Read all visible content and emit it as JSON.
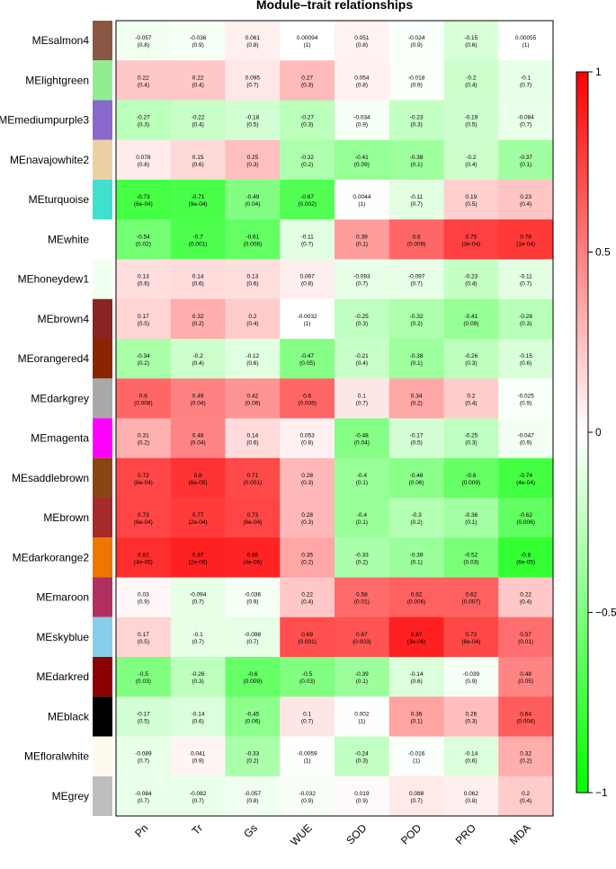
{
  "chart_data": {
    "type": "heatmap",
    "title": "Module–trait relationships",
    "columns": [
      "Pn",
      "Tr",
      "Gs",
      "WUE",
      "SOD",
      "POD",
      "PRO",
      "MDA"
    ],
    "rows": [
      {
        "name": "MEsalmon4",
        "color": "#8B5742",
        "values": [
          [
            "-0.057",
            "(0.8)"
          ],
          [
            "-0.036",
            "(0.9)"
          ],
          [
            "0.061",
            "(0.8)"
          ],
          [
            "0.00094",
            "(1)"
          ],
          [
            "0.051",
            "(0.8)"
          ],
          [
            "-0.024",
            "(0.9)"
          ],
          [
            "-0.15",
            "(0.6)"
          ],
          [
            "0.00055",
            "(1)"
          ]
        ]
      },
      {
        "name": "MElightgreen",
        "color": "#90EE90",
        "values": [
          [
            "0.22",
            "(0.4)"
          ],
          [
            "0.22",
            "(0.4)"
          ],
          [
            "0.095",
            "(0.7)"
          ],
          [
            "0.27",
            "(0.3)"
          ],
          [
            "0.054",
            "(0.8)"
          ],
          [
            "-0.018",
            "(0.9)"
          ],
          [
            "-0.2",
            "(0.4)"
          ],
          [
            "-0.1",
            "(0.7)"
          ]
        ]
      },
      {
        "name": "MEmediumpurple3",
        "color": "#8968CD",
        "values": [
          [
            "-0.27",
            "(0.3)"
          ],
          [
            "-0.22",
            "(0.4)"
          ],
          [
            "-0.18",
            "(0.5)"
          ],
          [
            "-0.27",
            "(0.3)"
          ],
          [
            "-0.034",
            "(0.9)"
          ],
          [
            "-0.23",
            "(0.3)"
          ],
          [
            "-0.19",
            "(0.5)"
          ],
          [
            "-0.084",
            "(0.7)"
          ]
        ]
      },
      {
        "name": "MEnavajowhite2",
        "color": "#EECFA1",
        "values": [
          [
            "0.078",
            "(0.8)"
          ],
          [
            "0.15",
            "(0.6)"
          ],
          [
            "0.25",
            "(0.3)"
          ],
          [
            "-0.32",
            "(0.2)"
          ],
          [
            "-0.41",
            "(0.09)"
          ],
          [
            "-0.38",
            "(0.1)"
          ],
          [
            "-0.2",
            "(0.4)"
          ],
          [
            "-0.37",
            "(0.1)"
          ]
        ]
      },
      {
        "name": "MEturquoise",
        "color": "#40E0D0",
        "values": [
          [
            "-0.73",
            "(6e-04)"
          ],
          [
            "-0.71",
            "(9e-04)"
          ],
          [
            "-0.49",
            "(0.04)"
          ],
          [
            "-0.67",
            "(0.002)"
          ],
          [
            "0.0044",
            "(1)"
          ],
          [
            "-0.11",
            "(0.7)"
          ],
          [
            "0.19",
            "(0.5)"
          ],
          [
            "0.23",
            "(0.4)"
          ]
        ]
      },
      {
        "name": "MEwhite",
        "color": "#FFFFFF",
        "values": [
          [
            "-0.54",
            "(0.02)"
          ],
          [
            "-0.7",
            "(0.001)"
          ],
          [
            "-0.61",
            "(0.008)"
          ],
          [
            "-0.11",
            "(0.7)"
          ],
          [
            "0.39",
            "(0.1)"
          ],
          [
            "0.6",
            "(0.009)"
          ],
          [
            "0.75",
            "(3e-04)"
          ],
          [
            "0.78",
            "(1e-04)"
          ]
        ]
      },
      {
        "name": "MEhoneydew1",
        "color": "#F0FFF0",
        "values": [
          [
            "0.13",
            "(0.6)"
          ],
          [
            "0.14",
            "(0.6)"
          ],
          [
            "0.13",
            "(0.6)"
          ],
          [
            "0.067",
            "(0.8)"
          ],
          [
            "-0.093",
            "(0.7)"
          ],
          [
            "-0.097",
            "(0.7)"
          ],
          [
            "-0.23",
            "(0.4)"
          ],
          [
            "-0.11",
            "(0.7)"
          ]
        ]
      },
      {
        "name": "MEbrown4",
        "color": "#8B2323",
        "values": [
          [
            "0.17",
            "(0.5)"
          ],
          [
            "0.32",
            "(0.2)"
          ],
          [
            "0.2",
            "(0.4)"
          ],
          [
            "-0.0032",
            "(1)"
          ],
          [
            "-0.25",
            "(0.3)"
          ],
          [
            "-0.32",
            "(0.2)"
          ],
          [
            "-0.41",
            "(0.09)"
          ],
          [
            "-0.28",
            "(0.3)"
          ]
        ]
      },
      {
        "name": "MEorangered4",
        "color": "#8B2500",
        "values": [
          [
            "-0.34",
            "(0.2)"
          ],
          [
            "-0.2",
            "(0.4)"
          ],
          [
            "-0.12",
            "(0.6)"
          ],
          [
            "-0.47",
            "(0.05)"
          ],
          [
            "-0.21",
            "(0.4)"
          ],
          [
            "-0.38",
            "(0.1)"
          ],
          [
            "-0.26",
            "(0.3)"
          ],
          [
            "-0.15",
            "(0.6)"
          ]
        ]
      },
      {
        "name": "MEdarkgrey",
        "color": "#A9A9A9",
        "values": [
          [
            "0.6",
            "(0.008)"
          ],
          [
            "0.49",
            "(0.04)"
          ],
          [
            "0.42",
            "(0.08)"
          ],
          [
            "0.6",
            "(0.008)"
          ],
          [
            "0.1",
            "(0.7)"
          ],
          [
            "0.34",
            "(0.2)"
          ],
          [
            "0.2",
            "(0.4)"
          ],
          [
            "-0.025",
            "(0.9)"
          ]
        ]
      },
      {
        "name": "MEmagenta",
        "color": "#FF00FF",
        "values": [
          [
            "0.31",
            "(0.2)"
          ],
          [
            "0.48",
            "(0.04)"
          ],
          [
            "0.14",
            "(0.6)"
          ],
          [
            "0.053",
            "(0.8)"
          ],
          [
            "-0.48",
            "(0.04)"
          ],
          [
            "-0.17",
            "(0.5)"
          ],
          [
            "-0.25",
            "(0.3)"
          ],
          [
            "-0.047",
            "(0.9)"
          ]
        ]
      },
      {
        "name": "MEsaddlebrown",
        "color": "#8B4513",
        "values": [
          [
            "0.72",
            "(8e-04)"
          ],
          [
            "0.8",
            "(6e-05)"
          ],
          [
            "0.71",
            "(0.001)"
          ],
          [
            "0.28",
            "(0.3)"
          ],
          [
            "-0.4",
            "(0.1)"
          ],
          [
            "-0.46",
            "(0.06)"
          ],
          [
            "-0.6",
            "(0.009)"
          ],
          [
            "-0.74",
            "(4e-04)"
          ]
        ]
      },
      {
        "name": "MEbrown",
        "color": "#A52A2A",
        "values": [
          [
            "0.73",
            "(6e-04)"
          ],
          [
            "0.77",
            "(2e-04)"
          ],
          [
            "0.73",
            "(6e-04)"
          ],
          [
            "0.28",
            "(0.3)"
          ],
          [
            "-0.4",
            "(0.1)"
          ],
          [
            "-0.3",
            "(0.2)"
          ],
          [
            "-0.36",
            "(0.1)"
          ],
          [
            "-0.62",
            "(0.006)"
          ]
        ]
      },
      {
        "name": "MEdarkorange2",
        "color": "#EE7600",
        "values": [
          [
            "0.82",
            "(4e-05)"
          ],
          [
            "0.87",
            "(2e-06)"
          ],
          [
            "0.86",
            "(4e-06)"
          ],
          [
            "0.35",
            "(0.2)"
          ],
          [
            "-0.33",
            "(0.2)"
          ],
          [
            "-0.39",
            "(0.1)"
          ],
          [
            "-0.52",
            "(0.03)"
          ],
          [
            "-0.8",
            "(6e-05)"
          ]
        ]
      },
      {
        "name": "MEmaroon",
        "color": "#B03060",
        "values": [
          [
            "0.03",
            "(0.9)"
          ],
          [
            "-0.094",
            "(0.7)"
          ],
          [
            "-0.036",
            "(0.9)"
          ],
          [
            "0.22",
            "(0.4)"
          ],
          [
            "0.58",
            "(0.01)"
          ],
          [
            "0.62",
            "(0.006)"
          ],
          [
            "0.62",
            "(0.007)"
          ],
          [
            "0.22",
            "(0.4)"
          ]
        ]
      },
      {
        "name": "MEskyblue",
        "color": "#87CEEB",
        "values": [
          [
            "0.17",
            "(0.5)"
          ],
          [
            "-0.1",
            "(0.7)"
          ],
          [
            "-0.098",
            "(0.7)"
          ],
          [
            "0.69",
            "(0.001)"
          ],
          [
            "0.67",
            "(0.003)"
          ],
          [
            "0.87",
            "(3e-06)"
          ],
          [
            "0.72",
            "(8e-04)"
          ],
          [
            "0.57",
            "(0.01)"
          ]
        ]
      },
      {
        "name": "MEdarkred",
        "color": "#8B0000",
        "values": [
          [
            "-0.5",
            "(0.03)"
          ],
          [
            "-0.26",
            "(0.3)"
          ],
          [
            "-0.6",
            "(0.009)"
          ],
          [
            "-0.5",
            "(0.03)"
          ],
          [
            "-0.39",
            "(0.1)"
          ],
          [
            "-0.14",
            "(0.6)"
          ],
          [
            "-0.039",
            "(0.9)"
          ],
          [
            "0.48",
            "(0.05)"
          ]
        ]
      },
      {
        "name": "MEblack",
        "color": "#000000",
        "values": [
          [
            "-0.17",
            "(0.5)"
          ],
          [
            "-0.14",
            "(0.6)"
          ],
          [
            "-0.45",
            "(0.06)"
          ],
          [
            "0.1",
            "(0.7)"
          ],
          [
            "0.002",
            "(1)"
          ],
          [
            "0.36",
            "(0.1)"
          ],
          [
            "0.26",
            "(0.3)"
          ],
          [
            "0.64",
            "(0.004)"
          ]
        ]
      },
      {
        "name": "MEfloralwhite",
        "color": "#FFFAF0",
        "values": [
          [
            "-0.089",
            "(0.7)"
          ],
          [
            "0.041",
            "(0.9)"
          ],
          [
            "-0.33",
            "(0.2)"
          ],
          [
            "-0.0059",
            "(1)"
          ],
          [
            "-0.24",
            "(0.3)"
          ],
          [
            "-0.016",
            "(1)"
          ],
          [
            "-0.14",
            "(0.6)"
          ],
          [
            "0.32",
            "(0.2)"
          ]
        ]
      },
      {
        "name": "MEgrey",
        "color": "#BEBEBE",
        "values": [
          [
            "-0.084",
            "(0.7)"
          ],
          [
            "-0.082",
            "(0.7)"
          ],
          [
            "-0.057",
            "(0.8)"
          ],
          [
            "-0.032",
            "(0.9)"
          ],
          [
            "0.019",
            "(0.9)"
          ],
          [
            "0.088",
            "(0.7)"
          ],
          [
            "0.062",
            "(0.8)"
          ],
          [
            "0.2",
            "(0.4)"
          ]
        ]
      }
    ],
    "color_scale": {
      "min": -1,
      "max": 1,
      "low_color": "#00FF00",
      "mid_color": "#FFFFFF",
      "high_color": "#FF0000"
    },
    "colorbar_ticks": [
      "1",
      "0.5",
      "0",
      "−0.5",
      "−1"
    ],
    "colorbar_values": [
      1,
      0.5,
      0,
      -0.5,
      -1
    ]
  }
}
